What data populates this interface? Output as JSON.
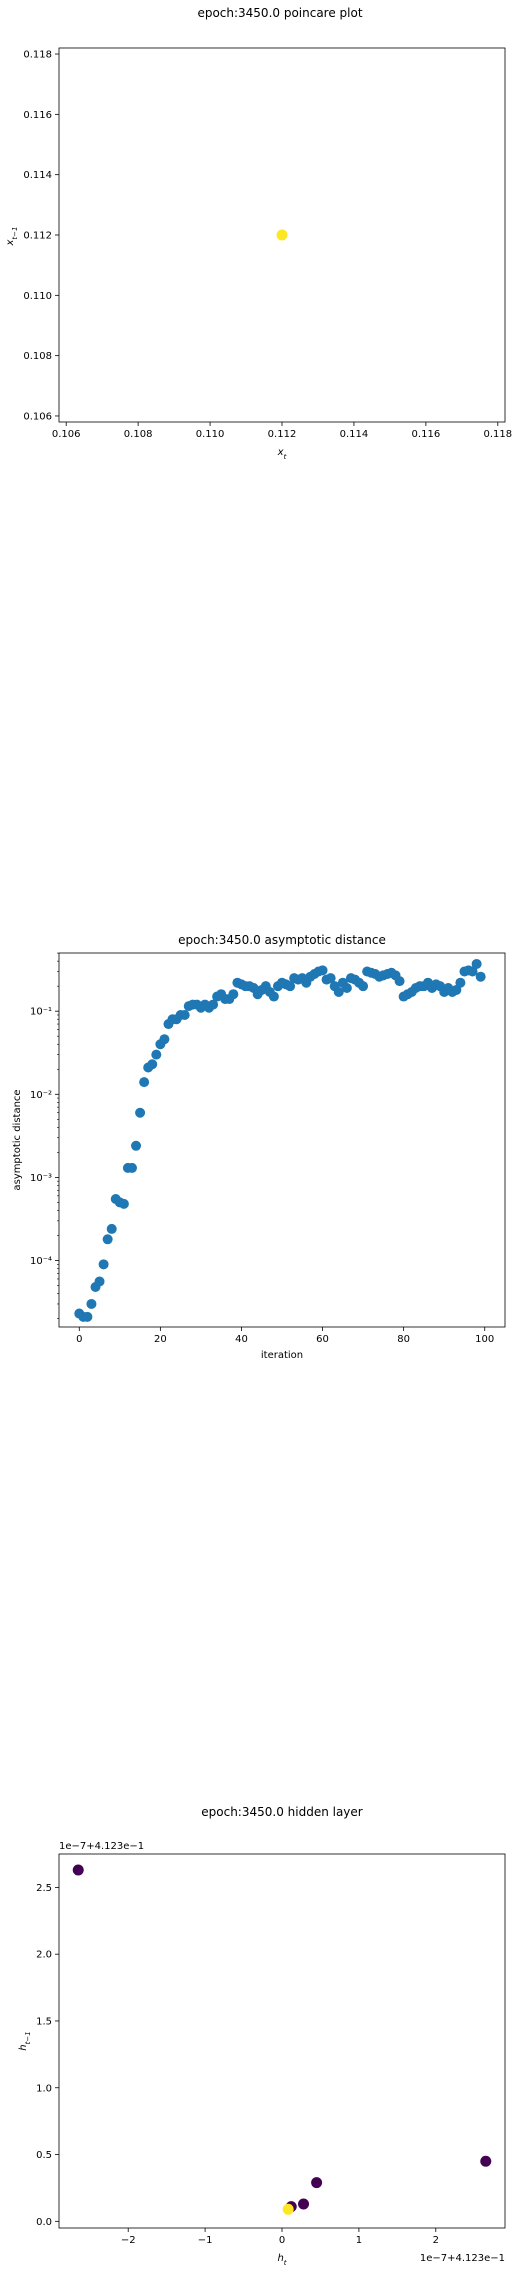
{
  "charts": {
    "poincare": {
      "title": "epoch:3450.0 poincare plot",
      "xlabel": "x",
      "xlabel_sub": "t",
      "ylabel": "x",
      "ylabel_sub": "t−1"
    },
    "asymptotic": {
      "title": "epoch:3450.0 asymptotic distance",
      "xlabel": "iteration",
      "ylabel": "asymptotic distance"
    },
    "hidden": {
      "title": "epoch:3450.0 hidden layer",
      "xlabel": "h",
      "xlabel_sub": "t",
      "ylabel": "h",
      "ylabel_sub": "t−1",
      "x_offset_text": "1e−7+4.123e−1",
      "y_offset_text": "1e−7+4.123e−1"
    }
  },
  "chart_data": [
    {
      "type": "scatter",
      "title": "epoch:3450.0 poincare plot",
      "xlabel": "x_t",
      "ylabel": "x_{t-1}",
      "xlim": [
        0.1058,
        0.1182
      ],
      "ylim": [
        0.1058,
        0.1182
      ],
      "x_ticks": [
        0.106,
        0.108,
        0.11,
        0.112,
        0.114,
        0.116,
        0.118
      ],
      "y_ticks": [
        0.106,
        0.108,
        0.11,
        0.112,
        0.114,
        0.116,
        0.118
      ],
      "x_tick_labels": [
        "0.106",
        "0.108",
        "0.110",
        "0.112",
        "0.114",
        "0.116",
        "0.118"
      ],
      "y_tick_labels": [
        "0.106",
        "0.108",
        "0.110",
        "0.112",
        "0.114",
        "0.116",
        "0.118"
      ],
      "points": [
        {
          "x": 0.112,
          "y": 0.112
        }
      ],
      "color": "#fde725",
      "grid": false
    },
    {
      "type": "scatter",
      "title": "epoch:3450.0 asymptotic distance",
      "xlabel": "iteration",
      "ylabel": "asymptotic distance",
      "xlim": [
        -5,
        105
      ],
      "ylim_log10": [
        -4.8,
        -0.3
      ],
      "log_y": true,
      "x_ticks": [
        0,
        20,
        40,
        60,
        80,
        100
      ],
      "x_tick_labels": [
        "0",
        "20",
        "40",
        "60",
        "80",
        "100"
      ],
      "y_ticks_exp": [
        -4,
        -3,
        -2,
        -1
      ],
      "y_tick_labels": [
        "10⁻⁴",
        "10⁻³",
        "10⁻²",
        "10⁻¹"
      ],
      "color": "#1f77b4",
      "x": [
        0,
        1,
        2,
        3,
        4,
        5,
        6,
        7,
        8,
        9,
        10,
        11,
        12,
        13,
        14,
        15,
        16,
        17,
        18,
        19,
        20,
        21,
        22,
        23,
        24,
        25,
        26,
        27,
        28,
        29,
        30,
        31,
        32,
        33,
        34,
        35,
        36,
        37,
        38,
        39,
        40,
        41,
        42,
        43,
        44,
        45,
        46,
        47,
        48,
        49,
        50,
        51,
        52,
        53,
        54,
        55,
        56,
        57,
        58,
        59,
        60,
        61,
        62,
        63,
        64,
        65,
        66,
        67,
        68,
        69,
        70,
        71,
        72,
        73,
        74,
        75,
        76,
        77,
        78,
        79,
        80,
        81,
        82,
        83,
        84,
        85,
        86,
        87,
        88,
        89,
        90,
        91,
        92,
        93,
        94,
        95,
        96,
        97,
        98,
        99
      ],
      "y": [
        2.3e-05,
        2.1e-05,
        2.1e-05,
        3e-05,
        4.8e-05,
        5.6e-05,
        9e-05,
        0.00018,
        0.00024,
        0.00055,
        0.0005,
        0.00048,
        0.0013,
        0.0013,
        0.0024,
        0.006,
        0.014,
        0.021,
        0.023,
        0.03,
        0.04,
        0.046,
        0.07,
        0.08,
        0.08,
        0.09,
        0.09,
        0.115,
        0.12,
        0.12,
        0.11,
        0.12,
        0.11,
        0.12,
        0.15,
        0.16,
        0.14,
        0.14,
        0.16,
        0.22,
        0.21,
        0.2,
        0.2,
        0.19,
        0.16,
        0.18,
        0.2,
        0.17,
        0.15,
        0.2,
        0.22,
        0.21,
        0.2,
        0.25,
        0.24,
        0.25,
        0.22,
        0.26,
        0.28,
        0.3,
        0.31,
        0.24,
        0.25,
        0.2,
        0.17,
        0.22,
        0.19,
        0.25,
        0.24,
        0.22,
        0.2,
        0.3,
        0.29,
        0.28,
        0.26,
        0.27,
        0.28,
        0.29,
        0.27,
        0.23,
        0.15,
        0.16,
        0.17,
        0.19,
        0.2,
        0.2,
        0.22,
        0.19,
        0.21,
        0.2,
        0.17,
        0.19,
        0.17,
        0.18,
        0.22,
        0.3,
        0.31,
        0.3,
        0.37,
        0.26
      ],
      "grid": false
    },
    {
      "type": "scatter",
      "title": "epoch:3450.0 hidden layer",
      "xlabel": "h_t",
      "ylabel": "h_{t-1}",
      "xlim": [
        -2.9,
        2.9
      ],
      "ylim": [
        -0.05,
        2.75
      ],
      "x_ticks": [
        -2,
        -1,
        0,
        1,
        2
      ],
      "y_ticks": [
        0.0,
        0.5,
        1.0,
        1.5,
        2.0,
        2.5
      ],
      "x_tick_labels": [
        "−2",
        "−1",
        "0",
        "1",
        "2"
      ],
      "y_tick_labels": [
        "0.0",
        "0.5",
        "1.0",
        "1.5",
        "2.0",
        "2.5"
      ],
      "points": [
        {
          "x": -2.65,
          "y": 2.63,
          "color": "#440154"
        },
        {
          "x": 2.65,
          "y": 0.45,
          "color": "#440154"
        },
        {
          "x": 0.45,
          "y": 0.29,
          "color": "#440154"
        },
        {
          "x": 0.28,
          "y": 0.13,
          "color": "#440154"
        },
        {
          "x": 0.12,
          "y": 0.11,
          "color": "#440154"
        },
        {
          "x": 0.08,
          "y": 0.09,
          "color": "#fde725"
        }
      ],
      "grid": false
    }
  ]
}
